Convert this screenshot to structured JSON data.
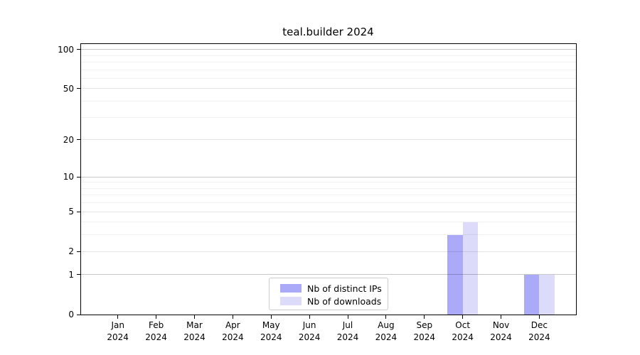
{
  "title": "teal.builder 2024",
  "chart_data": {
    "type": "bar",
    "title": "teal.builder 2024",
    "categories": [
      {
        "month": "Jan",
        "year": "2024"
      },
      {
        "month": "Feb",
        "year": "2024"
      },
      {
        "month": "Mar",
        "year": "2024"
      },
      {
        "month": "Apr",
        "year": "2024"
      },
      {
        "month": "May",
        "year": "2024"
      },
      {
        "month": "Jun",
        "year": "2024"
      },
      {
        "month": "Jul",
        "year": "2024"
      },
      {
        "month": "Aug",
        "year": "2024"
      },
      {
        "month": "Sep",
        "year": "2024"
      },
      {
        "month": "Oct",
        "year": "2024"
      },
      {
        "month": "Nov",
        "year": "2024"
      },
      {
        "month": "Dec",
        "year": "2024"
      }
    ],
    "series": [
      {
        "name": "Nb of distinct IPs",
        "color": "#abaaf8",
        "values": [
          0,
          0,
          0,
          0,
          0,
          0,
          0,
          0,
          0,
          3,
          0,
          1
        ]
      },
      {
        "name": "Nb of downloads",
        "color": "#dcdcfa",
        "values": [
          0,
          0,
          0,
          0,
          0,
          0,
          0,
          0,
          0,
          4,
          0,
          1
        ]
      }
    ],
    "xlabel": "",
    "ylabel": "",
    "yscale": "log1p",
    "ylim": [
      0,
      110
    ],
    "y_ticks": [
      0,
      1,
      2,
      5,
      10,
      20,
      50,
      100
    ],
    "y_minor_ticks": [
      3,
      4,
      6,
      7,
      8,
      9,
      30,
      40,
      60,
      70,
      80,
      90
    ],
    "grid": "horizontal",
    "legend_position": "lower center"
  }
}
